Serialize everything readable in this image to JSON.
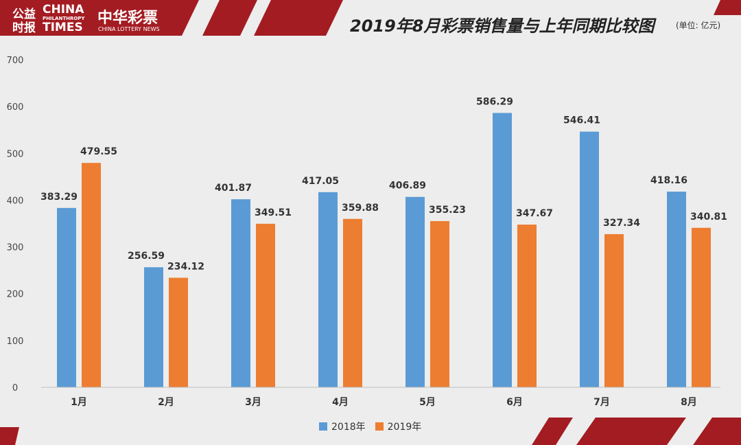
{
  "header": {
    "logo_cn_top": "公益",
    "logo_cn_bottom": "时报",
    "logo_en_top": "CHINA",
    "logo_en_mid": "PHILANTHROPY",
    "logo_en_bottom": "TIMES",
    "brand_cn": "中华彩票",
    "brand_en": "CHINA LOTTERY NEWS",
    "title": "2019年8月彩票销售量与上年同期比较图",
    "unit": "(单位: 亿元)"
  },
  "colors": {
    "series_2018": "#5b9bd5",
    "series_2019": "#ed7d31",
    "banner_red": "#a31c22"
  },
  "chart_data": {
    "type": "bar",
    "title": "2019年8月彩票销售量与上年同期比较图",
    "categories": [
      "1月",
      "2月",
      "3月",
      "4月",
      "5月",
      "6月",
      "7月",
      "8月"
    ],
    "series": [
      {
        "name": "2018年",
        "values": [
          383.29,
          256.59,
          401.87,
          417.05,
          406.89,
          586.29,
          546.41,
          418.16
        ]
      },
      {
        "name": "2019年",
        "values": [
          479.55,
          234.12,
          349.51,
          359.88,
          355.23,
          347.67,
          327.34,
          340.81
        ]
      }
    ],
    "yticks": [
      0,
      100,
      200,
      300,
      400,
      500,
      600,
      700
    ],
    "ylim": [
      0,
      700
    ],
    "grid": false,
    "legend_position": "bottom"
  }
}
